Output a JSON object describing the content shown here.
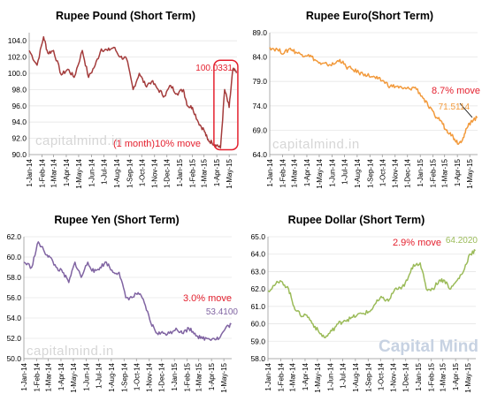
{
  "colors": {
    "gbp": "#a43c3c",
    "eur": "#f29a3c",
    "jpy": "#8064a2",
    "usd": "#9bbb59",
    "annotation_red": "#e4212f",
    "highlight_box": "#e4212f",
    "watermark": "#d6d6d6",
    "watermark_brand": "#c7d2e2"
  },
  "watermarks": {
    "small": "capitalmind.in",
    "brand": "Capital Mind"
  },
  "x_tick_labels": [
    "1-Jan-14",
    "1-Feb-14",
    "1-Mar-14",
    "1-Apr-14",
    "1-May-14",
    "1-Jun-14",
    "1-Jul-14",
    "1-Aug-14",
    "1-Sep-14",
    "1-Oct-14",
    "1-Nov-14",
    "1-Dec-14",
    "1-Jan-15",
    "1-Feb-15",
    "1-Mar-15",
    "1-Apr-15",
    "1-May-15"
  ],
  "chart_data": [
    {
      "type": "line",
      "title": "Rupee Pound (Short Term)",
      "series": [
        {
          "color": "#a43c3c",
          "x": [
            "2014-01-01",
            "2014-01-20",
            "2014-02-05",
            "2014-02-15",
            "2014-03-01",
            "2014-03-20",
            "2014-04-05",
            "2014-04-20",
            "2014-05-10",
            "2014-05-25",
            "2014-06-10",
            "2014-06-25",
            "2014-07-10",
            "2014-07-25",
            "2014-08-10",
            "2014-08-25",
            "2014-09-10",
            "2014-09-25",
            "2014-10-10",
            "2014-10-25",
            "2014-11-10",
            "2014-11-25",
            "2014-12-10",
            "2014-12-25",
            "2015-01-10",
            "2015-01-20",
            "2015-02-01",
            "2015-02-15",
            "2015-03-01",
            "2015-03-10",
            "2015-03-20",
            "2015-04-01",
            "2015-04-10",
            "2015-04-20",
            "2015-05-01",
            "2015-05-10",
            "2015-05-19"
          ],
          "values": [
            102.8,
            101.0,
            104.5,
            102.5,
            102.8,
            99.8,
            100.5,
            99.5,
            102.8,
            99.5,
            101.0,
            103.0,
            102.8,
            103.2,
            102.0,
            101.8,
            98.0,
            100.0,
            98.5,
            99.0,
            98.0,
            97.2,
            98.5,
            97.5,
            98.0,
            96.0,
            95.8,
            94.0,
            93.0,
            91.8,
            91.5,
            91.2,
            90.8,
            98.0,
            95.8,
            100.5,
            100.0331
          ]
        }
      ],
      "y_ticks": [
        "90.0",
        "92.0",
        "94.0",
        "96.0",
        "98.0",
        "100.0",
        "102.0",
        "104.0"
      ],
      "ylim": [
        90,
        105
      ],
      "grid": true,
      "annotations": [
        {
          "text": "100.0331",
          "color": "#e4212f"
        },
        {
          "text": "(1 month)10% move",
          "color": "#e4212f"
        }
      ]
    },
    {
      "type": "line",
      "title": "Rupee Euro(Short Term)",
      "series": [
        {
          "color": "#f29a3c",
          "x": [
            "2014-01-01",
            "2014-01-20",
            "2014-02-05",
            "2014-02-20",
            "2014-03-05",
            "2014-03-20",
            "2014-04-05",
            "2014-04-20",
            "2014-05-05",
            "2014-05-20",
            "2014-06-05",
            "2014-06-20",
            "2014-07-05",
            "2014-07-20",
            "2014-08-05",
            "2014-08-20",
            "2014-09-05",
            "2014-09-20",
            "2014-10-05",
            "2014-10-20",
            "2014-11-05",
            "2014-11-20",
            "2014-12-05",
            "2014-12-20",
            "2015-01-05",
            "2015-01-20",
            "2015-02-05",
            "2015-02-20",
            "2015-03-05",
            "2015-03-15",
            "2015-03-25",
            "2015-04-05",
            "2015-04-15",
            "2015-04-25",
            "2015-05-05",
            "2015-05-19"
          ],
          "values": [
            86.0,
            85.5,
            84.8,
            85.8,
            85.0,
            84.5,
            84.5,
            83.5,
            82.5,
            82.5,
            82.5,
            83.5,
            82.0,
            81.5,
            80.8,
            80.5,
            80.0,
            79.5,
            79.0,
            78.0,
            78.0,
            77.5,
            77.5,
            77.8,
            76.0,
            74.0,
            72.0,
            71.0,
            69.0,
            68.5,
            67.2,
            66.3,
            67.5,
            69.5,
            71.0,
            71.5114
          ]
        }
      ],
      "y_ticks": [
        "64.0",
        "69.0",
        "74.0",
        "79.0",
        "84.0",
        "89.0"
      ],
      "ylim": [
        64,
        89
      ],
      "grid": true,
      "annotations": [
        {
          "text": "8.7% move",
          "color": "#e4212f"
        },
        {
          "text": "71.5114",
          "color": "#f29a3c"
        }
      ]
    },
    {
      "type": "line",
      "title": "Rupee Yen (Short Term)",
      "series": [
        {
          "color": "#8064a2",
          "x": [
            "2014-01-01",
            "2014-01-20",
            "2014-02-05",
            "2014-02-20",
            "2014-03-05",
            "2014-03-20",
            "2014-04-05",
            "2014-04-20",
            "2014-05-05",
            "2014-05-20",
            "2014-06-05",
            "2014-06-20",
            "2014-07-05",
            "2014-07-20",
            "2014-08-05",
            "2014-08-20",
            "2014-09-05",
            "2014-09-20",
            "2014-10-05",
            "2014-10-20",
            "2014-11-05",
            "2014-11-20",
            "2014-12-05",
            "2014-12-20",
            "2015-01-05",
            "2015-01-20",
            "2015-02-05",
            "2015-02-20",
            "2015-03-05",
            "2015-03-20",
            "2015-04-05",
            "2015-04-20",
            "2015-05-05",
            "2015-05-19"
          ],
          "values": [
            59.5,
            59.0,
            61.5,
            60.5,
            60.0,
            59.0,
            58.5,
            57.5,
            59.5,
            58.0,
            59.5,
            58.5,
            59.0,
            59.5,
            58.5,
            58.5,
            56.0,
            56.0,
            56.5,
            55.5,
            53.5,
            52.5,
            52.5,
            52.5,
            53.0,
            52.5,
            53.0,
            52.5,
            52.0,
            52.0,
            52.0,
            52.0,
            53.0,
            53.41
          ]
        }
      ],
      "y_ticks": [
        "50.0",
        "52.0",
        "54.0",
        "56.0",
        "58.0",
        "60.0",
        "62.0"
      ],
      "ylim": [
        50,
        62
      ],
      "grid": true,
      "annotations": [
        {
          "text": "3.0% move",
          "color": "#e4212f"
        },
        {
          "text": "53.4100",
          "color": "#8064a2"
        }
      ]
    },
    {
      "type": "line",
      "title": "Rupee Dollar (Short Term)",
      "series": [
        {
          "color": "#9bbb59",
          "x": [
            "2014-01-01",
            "2014-01-20",
            "2014-02-05",
            "2014-02-20",
            "2014-03-05",
            "2014-03-20",
            "2014-04-05",
            "2014-04-20",
            "2014-05-05",
            "2014-05-20",
            "2014-06-05",
            "2014-06-20",
            "2014-07-05",
            "2014-07-20",
            "2014-08-05",
            "2014-08-20",
            "2014-09-05",
            "2014-09-20",
            "2014-10-05",
            "2014-10-20",
            "2014-11-05",
            "2014-11-20",
            "2014-12-05",
            "2014-12-20",
            "2015-01-05",
            "2015-01-20",
            "2015-02-05",
            "2015-02-20",
            "2015-03-05",
            "2015-03-20",
            "2015-04-05",
            "2015-04-20",
            "2015-05-05",
            "2015-05-19"
          ],
          "values": [
            61.9,
            62.3,
            62.4,
            62.0,
            61.0,
            60.5,
            60.5,
            60.0,
            59.5,
            59.2,
            59.6,
            60.0,
            60.2,
            60.3,
            60.5,
            60.6,
            60.7,
            61.2,
            61.5,
            61.3,
            62.0,
            62.0,
            62.5,
            63.4,
            63.5,
            62.0,
            62.0,
            62.5,
            62.5,
            62.0,
            62.5,
            63.0,
            64.0,
            64.202
          ]
        }
      ],
      "y_ticks": [
        "58.0",
        "59.0",
        "60.0",
        "61.0",
        "62.0",
        "63.0",
        "64.0",
        "65.0"
      ],
      "ylim": [
        58,
        65
      ],
      "grid": true,
      "annotations": [
        {
          "text": "2.9% move",
          "color": "#e4212f"
        },
        {
          "text": "64.2020",
          "color": "#9bbb59"
        }
      ]
    }
  ]
}
